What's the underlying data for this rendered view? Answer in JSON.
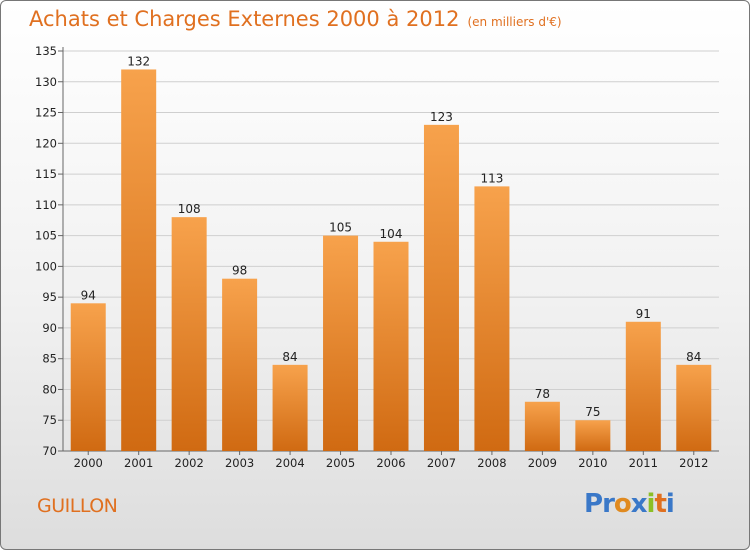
{
  "header": {
    "title": "Achats et Charges Externes 2000 à 2012",
    "subtitle": "(en milliers d'€)"
  },
  "footer": {
    "commune": "GUILLON",
    "brand": "Proxiti",
    "brand_letters": [
      {
        "ch": "P",
        "color": "#3a78c8"
      },
      {
        "ch": "r",
        "color": "#3a78c8"
      },
      {
        "ch": "o",
        "color": "#e08a20"
      },
      {
        "ch": "x",
        "color": "#3a78c8"
      },
      {
        "ch": "i",
        "color": "#8cbf26"
      },
      {
        "ch": "t",
        "color": "#e07020"
      },
      {
        "ch": "i",
        "color": "#3a78c8"
      }
    ]
  },
  "colors": {
    "bar_light": "#f7a24c",
    "bar_dark": "#d06a12",
    "title": "#e07020"
  },
  "chart_data": {
    "type": "bar",
    "categories": [
      "2000",
      "2001",
      "2002",
      "2003",
      "2004",
      "2005",
      "2006",
      "2007",
      "2008",
      "2009",
      "2010",
      "2011",
      "2012"
    ],
    "values": [
      94,
      132,
      108,
      98,
      84,
      105,
      104,
      123,
      113,
      78,
      75,
      91,
      84
    ],
    "title": "Achats et Charges Externes 2000 à 2012",
    "ylim": [
      70,
      135
    ],
    "yticks": [
      70,
      75,
      80,
      85,
      90,
      95,
      100,
      105,
      110,
      115,
      120,
      125,
      130,
      135
    ],
    "grid": true,
    "data_labels": true
  }
}
